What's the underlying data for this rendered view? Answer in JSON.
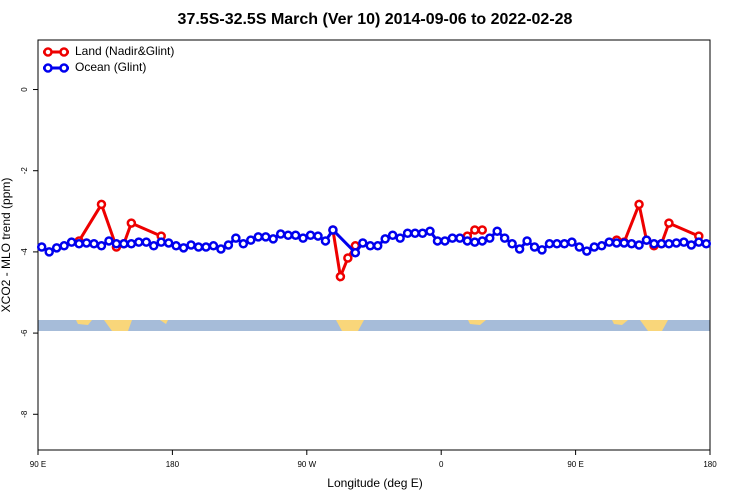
{
  "chart_data": {
    "type": "line",
    "title": "37.5S-32.5S March (Ver 10)   2014-09-06 to 2022-02-28",
    "xlabel": "Longitude (deg E)",
    "ylabel": "XCO2 - MLO trend (ppm)",
    "xlim": [
      90,
      540
    ],
    "ylim": [
      -8.88,
      1.22
    ],
    "xticks": [
      {
        "value": 90,
        "label": "90 E"
      },
      180,
      {
        "value": 270,
        "label": "90 W"
      },
      {
        "value": 360,
        "label": "0"
      },
      {
        "value": 450,
        "label": "90 E"
      },
      {
        "value": 540,
        "label": "180"
      }
    ],
    "yticks": [
      0,
      -2,
      -4,
      -6,
      -8
    ],
    "legend": "upper left",
    "grid": false,
    "series": [
      {
        "name": "Land (Nadir&Glint)",
        "color": "#ee0000",
        "x": [
          117.5,
          132.5,
          142.5,
          147.5,
          152.5,
          172.5,
          230,
          287.5,
          292.5,
          297.5,
          302.5,
          340,
          377.5,
          382.5,
          387.5,
          430,
          477.5,
          482.5,
          492.5,
          497.5,
          502.5,
          507.5,
          512.5,
          532.5
        ],
        "values": [
          -3.73,
          -2.83,
          -3.88,
          -3.8,
          -3.29,
          -3.61,
          null,
          -3.46,
          -4.61,
          -4.15,
          -3.85,
          null,
          -3.61,
          -3.46,
          -3.46,
          null,
          -3.71,
          -3.76,
          -2.83,
          -3.71,
          -3.85,
          -3.8,
          -3.29,
          -3.61
        ]
      },
      {
        "name": "Ocean (Glint)",
        "color": "#0000ee",
        "x": [
          92.5,
          97.5,
          102.5,
          107.5,
          112.5,
          117.5,
          122.5,
          127.5,
          132.5,
          137.5,
          142.5,
          147.5,
          152.5,
          157.5,
          162.5,
          167.5,
          172.5,
          177.5,
          182.5,
          187.5,
          192.5,
          197.5,
          202.5,
          207.5,
          212.5,
          217.5,
          222.5,
          227.5,
          232.5,
          237.5,
          242.5,
          247.5,
          252.5,
          257.5,
          262.5,
          267.5,
          272.5,
          277.5,
          282.5,
          287.5,
          302.5,
          307.5,
          312.5,
          317.5,
          322.5,
          327.5,
          332.5,
          337.5,
          342.5,
          347.5,
          352.5,
          357.5,
          362.5,
          367.5,
          372.5,
          377.5,
          382.5,
          387.5,
          392.5,
          397.5,
          402.5,
          407.5,
          412.5,
          417.5,
          422.5,
          427.5,
          432.5,
          437.5,
          442.5,
          447.5,
          452.5,
          457.5,
          462.5,
          467.5,
          472.5,
          477.5,
          482.5,
          487.5,
          492.5,
          497.5,
          502.5,
          507.5,
          512.5,
          517.5,
          522.5,
          527.5,
          532.5,
          537.5
        ],
        "values": [
          -3.88,
          -4.0,
          -3.9,
          -3.85,
          -3.76,
          -3.8,
          -3.78,
          -3.8,
          -3.85,
          -3.73,
          -3.8,
          -3.8,
          -3.8,
          -3.76,
          -3.76,
          -3.85,
          -3.76,
          -3.78,
          -3.85,
          -3.9,
          -3.83,
          -3.88,
          -3.88,
          -3.85,
          -3.93,
          -3.83,
          -3.66,
          -3.8,
          -3.71,
          -3.63,
          -3.63,
          -3.68,
          -3.56,
          -3.59,
          -3.59,
          -3.66,
          -3.59,
          -3.61,
          -3.73,
          -3.46,
          -4.02,
          -3.78,
          -3.85,
          -3.85,
          -3.68,
          -3.59,
          -3.66,
          -3.54,
          -3.54,
          -3.54,
          -3.49,
          -3.73,
          -3.73,
          -3.66,
          -3.66,
          -3.73,
          -3.76,
          -3.73,
          -3.66,
          -3.49,
          -3.66,
          -3.8,
          -3.93,
          -3.73,
          -3.88,
          -3.95,
          -3.8,
          -3.8,
          -3.8,
          -3.76,
          -3.88,
          -3.98,
          -3.88,
          -3.85,
          -3.76,
          -3.78,
          -3.78,
          -3.8,
          -3.83,
          -3.71,
          -3.8,
          -3.8,
          -3.8,
          -3.78,
          -3.76,
          -3.83,
          -3.76,
          -3.8
        ]
      }
    ]
  }
}
